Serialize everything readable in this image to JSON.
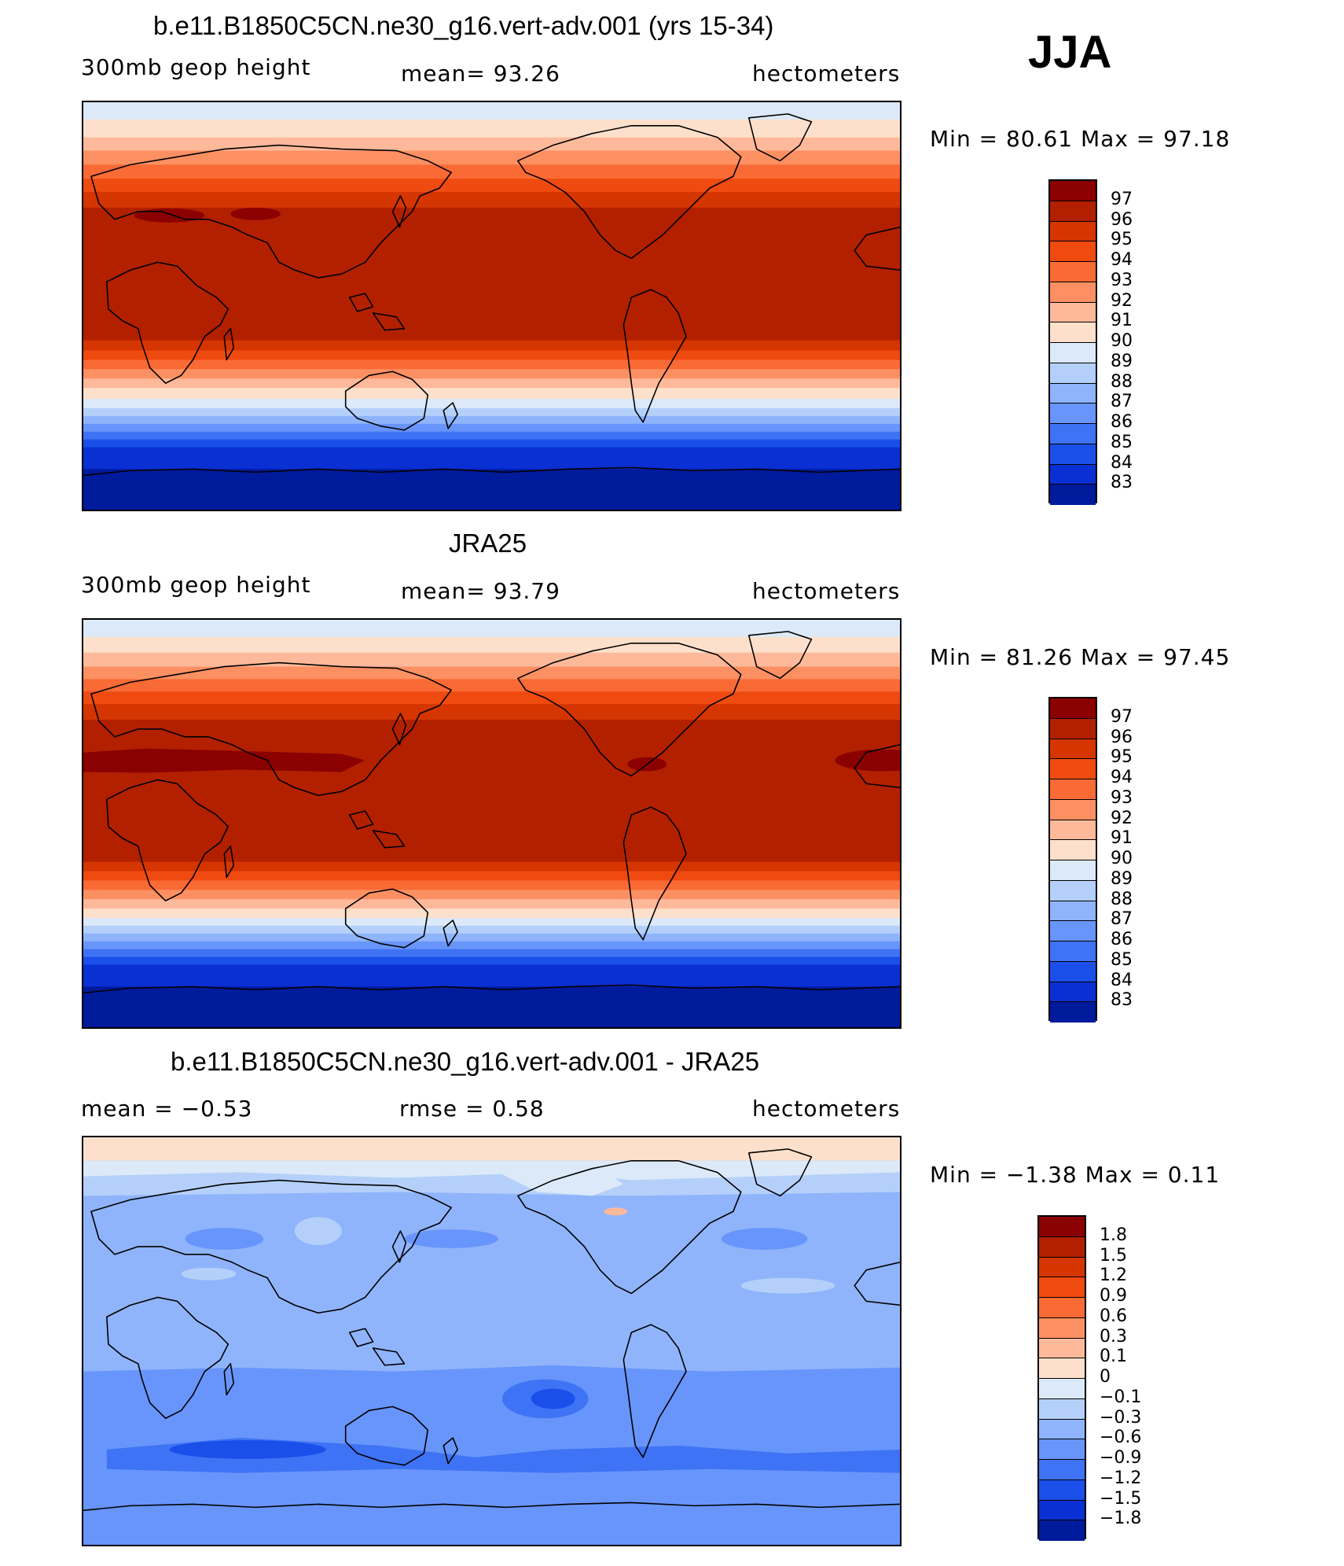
{
  "figure": {
    "season": "JJA"
  },
  "panels": [
    {
      "title": "b.e11.B1850C5CN.ne30_g16.vert-adv.001 (yrs 15-34)",
      "left_label": "300mb geop height",
      "center_label": "mean=  93.26",
      "right_label": "hectometers",
      "minmax": "Min =  80.61 Max =  97.18",
      "kind": "field",
      "levels": [
        "97",
        "96",
        "95",
        "94",
        "93",
        "92",
        "91",
        "90",
        "89",
        "88",
        "87",
        "86",
        "85",
        "84",
        "83"
      ],
      "colors": [
        "#8b0000",
        "#b22000",
        "#d53500",
        "#ef4a10",
        "#fa6a35",
        "#fc9062",
        "#fdb99a",
        "#fde0cb",
        "#dbe9f8",
        "#b4d0fa",
        "#8fb4fb",
        "#6895fb",
        "#3f73f5",
        "#1a4fea",
        "#0a2fd2",
        "#001a9c"
      ]
    },
    {
      "title": "JRA25",
      "left_label": "300mb geop height",
      "center_label": "mean=  93.79",
      "right_label": "hectometers",
      "minmax": "Min =  81.26 Max =  97.45",
      "kind": "field",
      "levels": [
        "97",
        "96",
        "95",
        "94",
        "93",
        "92",
        "91",
        "90",
        "89",
        "88",
        "87",
        "86",
        "85",
        "84",
        "83"
      ],
      "colors": [
        "#8b0000",
        "#b22000",
        "#d53500",
        "#ef4a10",
        "#fa6a35",
        "#fc9062",
        "#fdb99a",
        "#fde0cb",
        "#dbe9f8",
        "#b4d0fa",
        "#8fb4fb",
        "#6895fb",
        "#3f73f5",
        "#1a4fea",
        "#0a2fd2",
        "#001a9c"
      ]
    },
    {
      "title": "b.e11.B1850C5CN.ne30_g16.vert-adv.001 - JRA25",
      "left_label": "mean =  −0.53",
      "center_label": "rmse =   0.58",
      "right_label": "hectometers",
      "minmax": "Min =  −1.38 Max =   0.11",
      "kind": "diff",
      "levels": [
        "1.8",
        "1.5",
        "1.2",
        "0.9",
        "0.6",
        "0.3",
        "0.1",
        "0",
        "−0.1",
        "−0.3",
        "−0.6",
        "−0.9",
        "−1.2",
        "−1.5",
        "−1.8"
      ],
      "colors": [
        "#8b0000",
        "#b22000",
        "#d53500",
        "#ef4a10",
        "#fa6a35",
        "#fc9062",
        "#fdb99a",
        "#fde0cb",
        "#dbe9f8",
        "#b4d0fa",
        "#8fb4fb",
        "#6895fb",
        "#3f73f5",
        "#1a4fea",
        "#0a2fd2",
        "#001a9c"
      ]
    }
  ]
}
